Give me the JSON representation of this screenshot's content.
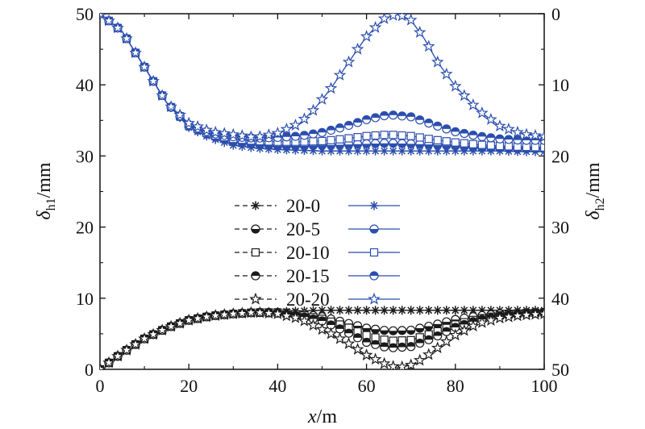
{
  "chart_data": {
    "type": "line",
    "xlabel": {
      "italic": "x",
      "rest": "/m"
    },
    "ylabel_left": {
      "italic": "δ",
      "sub": "h1",
      "rest": "/mm"
    },
    "ylabel_right": {
      "italic": "δ",
      "sub": "h2",
      "rest": "/mm"
    },
    "xlim": [
      0,
      100
    ],
    "ylim_left": [
      0,
      50
    ],
    "ylim_right": [
      0,
      50
    ],
    "right_axis_inverted": true,
    "x_ticks": [
      "0",
      "20",
      "40",
      "60",
      "80",
      "100"
    ],
    "y_left_ticks": [
      "0",
      "10",
      "20",
      "30",
      "40",
      "50"
    ],
    "y_right_ticks": [
      "0",
      "10",
      "20",
      "30",
      "40",
      "50"
    ],
    "grid": false,
    "legend_position": "center",
    "colors": {
      "h1": "#1a1a1a",
      "h2": "#2b4eae"
    },
    "series_h1": [
      {
        "name": "20-0",
        "marker": "asterisk",
        "x": [
          0,
          5,
          10,
          15,
          20,
          25,
          30,
          35,
          40,
          45,
          50,
          55,
          60,
          65,
          70,
          75,
          80,
          85,
          90,
          95,
          100
        ],
        "y": [
          0,
          2.3,
          4.3,
          5.8,
          6.9,
          7.5,
          7.8,
          8.0,
          8.1,
          8.2,
          8.3,
          8.3,
          8.3,
          8.3,
          8.3,
          8.3,
          8.3,
          8.3,
          8.3,
          8.3,
          8.3
        ]
      },
      {
        "name": "20-5",
        "marker": "circle-half",
        "x": [
          0,
          5,
          10,
          15,
          20,
          25,
          30,
          35,
          40,
          45,
          50,
          55,
          60,
          65,
          70,
          75,
          80,
          85,
          90,
          95,
          100
        ],
        "y": [
          0,
          2.3,
          4.3,
          5.8,
          6.9,
          7.5,
          7.8,
          8.0,
          8.0,
          7.8,
          7.4,
          6.6,
          5.8,
          5.4,
          5.5,
          6.2,
          7.0,
          7.5,
          7.8,
          7.9,
          8.0
        ]
      },
      {
        "name": "20-10",
        "marker": "square",
        "x": [
          0,
          5,
          10,
          15,
          20,
          25,
          30,
          35,
          40,
          45,
          50,
          55,
          60,
          65,
          70,
          75,
          80,
          85,
          90,
          95,
          100
        ],
        "y": [
          0,
          2.3,
          4.3,
          5.8,
          6.9,
          7.5,
          7.8,
          8.0,
          8.0,
          7.7,
          7.1,
          6.1,
          4.8,
          4.0,
          4.1,
          5.1,
          6.3,
          7.1,
          7.6,
          7.9,
          8.0
        ]
      },
      {
        "name": "20-15",
        "marker": "circle-half-top",
        "x": [
          0,
          5,
          10,
          15,
          20,
          25,
          30,
          35,
          40,
          45,
          50,
          55,
          60,
          65,
          70,
          75,
          80,
          85,
          90,
          95,
          100
        ],
        "y": [
          0,
          2.3,
          4.3,
          5.8,
          6.9,
          7.5,
          7.8,
          8.0,
          7.9,
          7.5,
          6.8,
          5.4,
          3.8,
          3.0,
          3.2,
          4.4,
          5.9,
          6.9,
          7.5,
          7.8,
          8.0
        ]
      },
      {
        "name": "20-20",
        "marker": "star",
        "x": [
          0,
          5,
          10,
          15,
          20,
          25,
          30,
          35,
          40,
          45,
          48,
          52,
          56,
          60,
          64,
          67,
          70,
          73,
          76,
          80,
          85,
          90,
          95,
          100
        ],
        "y": [
          0,
          2.3,
          4.3,
          5.8,
          6.9,
          7.5,
          7.8,
          8.0,
          7.8,
          7.1,
          6.2,
          5.0,
          3.6,
          2.0,
          0.8,
          0.2,
          0.6,
          1.6,
          3.0,
          4.8,
          6.4,
          7.2,
          7.6,
          7.8
        ]
      }
    ],
    "series_h2": [
      {
        "name": "20-0",
        "marker": "asterisk",
        "x": [
          0,
          5,
          10,
          15,
          20,
          25,
          30,
          35,
          40,
          45,
          50,
          55,
          60,
          65,
          70,
          75,
          80,
          85,
          90,
          95,
          100
        ],
        "y": [
          0,
          2.5,
          7.5,
          12.5,
          16.0,
          17.5,
          18.5,
          18.9,
          19.1,
          19.2,
          19.3,
          19.3,
          19.3,
          19.3,
          19.3,
          19.3,
          19.3,
          19.3,
          19.3,
          19.4,
          19.4
        ]
      },
      {
        "name": "20-5",
        "marker": "circle-half",
        "x": [
          0,
          5,
          10,
          15,
          20,
          25,
          30,
          35,
          40,
          45,
          50,
          55,
          60,
          65,
          70,
          75,
          80,
          85,
          90,
          95,
          100
        ],
        "y": [
          0,
          2.5,
          7.5,
          12.5,
          15.8,
          17.2,
          18.0,
          18.4,
          18.6,
          18.6,
          18.5,
          18.4,
          18.3,
          18.2,
          18.3,
          18.4,
          18.6,
          18.8,
          18.9,
          19.0,
          19.0
        ]
      },
      {
        "name": "20-10",
        "marker": "square",
        "x": [
          0,
          5,
          10,
          15,
          20,
          25,
          30,
          35,
          40,
          45,
          50,
          55,
          60,
          65,
          70,
          75,
          80,
          85,
          90,
          95,
          100
        ],
        "y": [
          0,
          2.5,
          7.5,
          12.5,
          15.7,
          17.0,
          17.6,
          17.9,
          18.0,
          18.0,
          17.9,
          17.6,
          17.2,
          17.0,
          17.2,
          17.7,
          18.1,
          18.4,
          18.6,
          18.7,
          18.8
        ]
      },
      {
        "name": "20-15",
        "marker": "circle-half-top",
        "x": [
          0,
          5,
          10,
          15,
          20,
          25,
          30,
          35,
          40,
          45,
          50,
          55,
          60,
          65,
          70,
          75,
          80,
          85,
          90,
          95,
          100
        ],
        "y": [
          0,
          2.5,
          7.5,
          12.5,
          15.6,
          16.8,
          17.3,
          17.5,
          17.4,
          17.2,
          16.7,
          15.9,
          14.9,
          14.2,
          14.5,
          15.6,
          16.6,
          17.2,
          17.6,
          17.8,
          17.8
        ]
      },
      {
        "name": "20-20",
        "marker": "star",
        "x": [
          0,
          5,
          10,
          15,
          20,
          25,
          30,
          35,
          40,
          45,
          48,
          52,
          56,
          60,
          64,
          67,
          70,
          73,
          76,
          80,
          85,
          90,
          95,
          100
        ],
        "y": [
          0,
          2.5,
          7.5,
          12.5,
          15.4,
          16.6,
          17.0,
          17.4,
          16.8,
          15.4,
          13.6,
          10.5,
          6.8,
          3.2,
          0.7,
          0,
          0.9,
          3.5,
          6.8,
          10.2,
          13.5,
          15.8,
          16.9,
          17.3
        ]
      }
    ]
  }
}
